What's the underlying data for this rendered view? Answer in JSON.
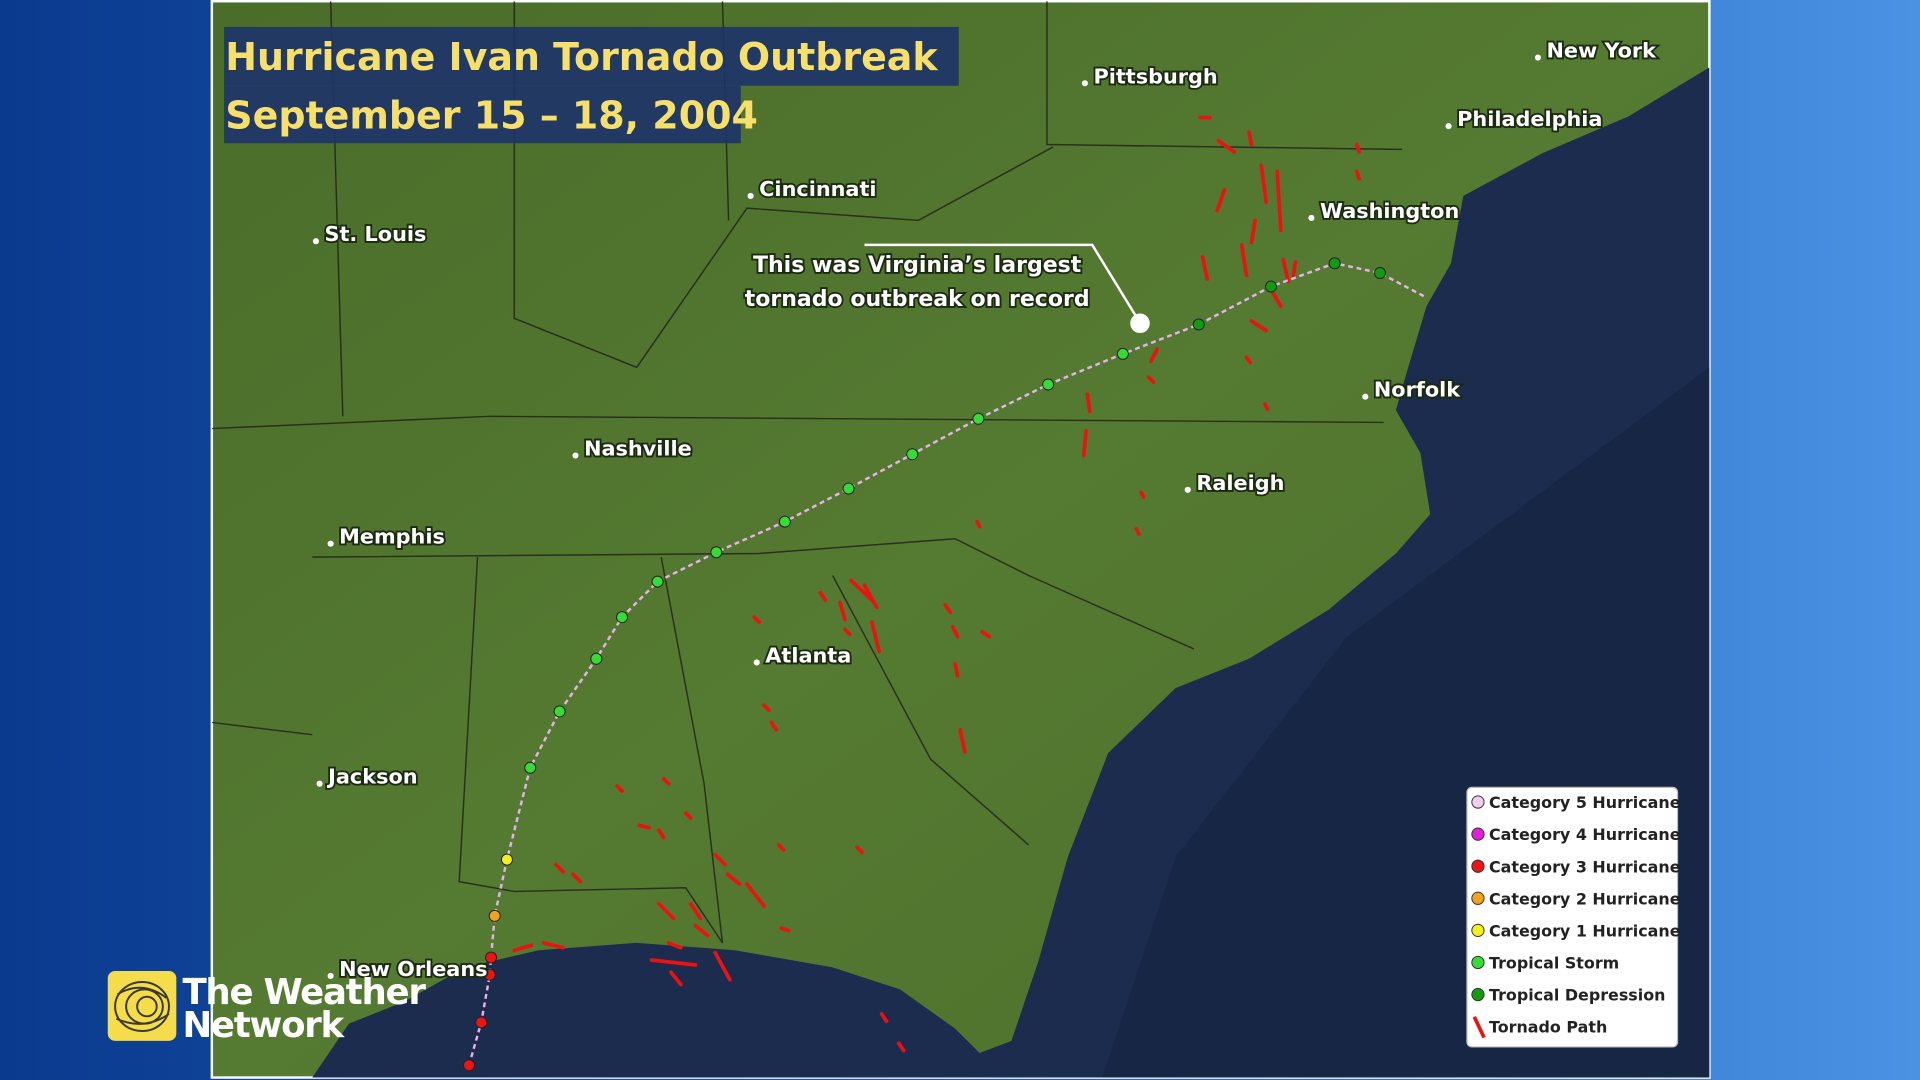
{
  "title": [
    "Hurricane Ivan Tornado Outbreak",
    "September 15 – 18, 2004"
  ],
  "cities": [
    "Pittsburgh",
    "New York",
    "Philadelphia",
    "Cincinnati",
    "Washington",
    "St. Louis",
    "Norfolk",
    "Nashville",
    "Raleigh",
    "Memphis",
    "Atlanta",
    "Jackson",
    "New Orleans"
  ],
  "annotation": [
    "This was Virginia’s largest",
    "tornado outbreak on record"
  ],
  "legend": [
    {
      "label": "Category 5 Hurricane",
      "color": "#f3cdef"
    },
    {
      "label": "Category 4 Hurricane",
      "color": "#e21fd8"
    },
    {
      "label": "Category 3 Hurricane",
      "color": "#ec1414"
    },
    {
      "label": "Category 2 Hurricane",
      "color": "#f2a21e"
    },
    {
      "label": "Category 1 Hurricane",
      "color": "#f4f01c"
    },
    {
      "label": "Tropical Storm",
      "color": "#36dc36"
    },
    {
      "label": "Tropical Depression",
      "color": "#129a12"
    },
    {
      "label": "Tornado Path",
      "color": "#ee1111"
    }
  ],
  "logo": [
    "The Weather",
    "Network"
  ]
}
